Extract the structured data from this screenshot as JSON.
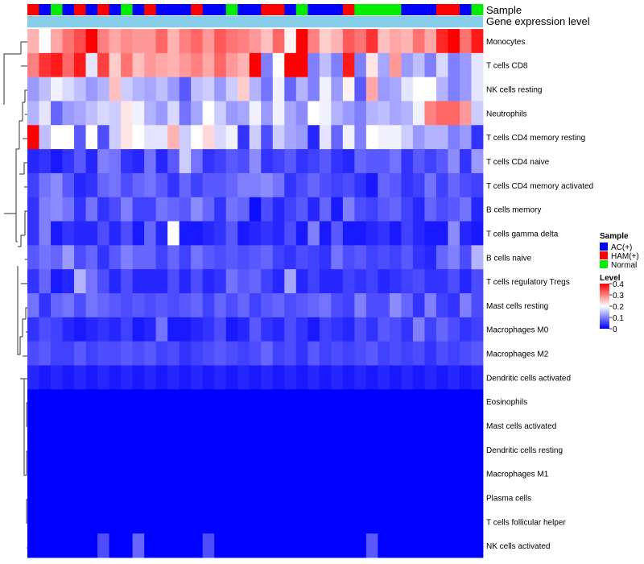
{
  "chart_data": {
    "type": "heatmap",
    "annotation_titles": {
      "sample": "Sample",
      "gene": "Gene expression level"
    },
    "sample_groups": [
      "HAM",
      "AC",
      "Normal",
      "AC",
      "HAM",
      "AC",
      "HAM",
      "AC",
      "Normal",
      "AC",
      "HAM",
      "AC",
      "AC",
      "AC",
      "HAM",
      "AC",
      "AC",
      "Normal",
      "AC",
      "AC",
      "HAM",
      "HAM",
      "AC",
      "Normal",
      "AC",
      "AC",
      "AC",
      "HAM",
      "Normal",
      "Normal",
      "Normal",
      "Normal",
      "AC",
      "AC",
      "AC",
      "HAM",
      "HAM",
      "AC",
      "Normal"
    ],
    "group_colors": {
      "AC": "#0000ff",
      "HAM": "#ff0000",
      "Normal": "#00ee00"
    },
    "gene_bar_color": "#87ceeb",
    "rows": [
      {
        "name": "Monocytes",
        "values": [
          0.26,
          0.2,
          0.27,
          0.31,
          0.34,
          0.4,
          0.3,
          0.27,
          0.29,
          0.28,
          0.28,
          0.32,
          0.26,
          0.3,
          0.32,
          0.28,
          0.33,
          0.31,
          0.3,
          0.28,
          0.25,
          0.32,
          0.21,
          0.4,
          0.3,
          0.24,
          0.26,
          0.33,
          0.31,
          0.36,
          0.25,
          0.27,
          0.26,
          0.31,
          0.27,
          0.37,
          0.4,
          0.31,
          0.38
        ]
      },
      {
        "name": "T cells CD8",
        "values": [
          0.3,
          0.36,
          0.38,
          0.32,
          0.38,
          0.18,
          0.35,
          0.24,
          0.31,
          0.25,
          0.28,
          0.27,
          0.26,
          0.28,
          0.3,
          0.27,
          0.32,
          0.28,
          0.26,
          0.4,
          0.1,
          0.2,
          0.4,
          0.4,
          0.1,
          0.15,
          0.1,
          0.38,
          0.1,
          0.22,
          0.13,
          0.28,
          0.12,
          0.15,
          0.1,
          0.17,
          0.1,
          0.12,
          0.18
        ]
      },
      {
        "name": "NK cells resting",
        "values": [
          0.12,
          0.15,
          0.19,
          0.17,
          0.15,
          0.12,
          0.14,
          0.25,
          0.16,
          0.14,
          0.13,
          0.15,
          0.12,
          0.07,
          0.15,
          0.16,
          0.12,
          0.16,
          0.24,
          0.14,
          0.09,
          0.19,
          0.08,
          0.14,
          0.1,
          0.19,
          0.12,
          0.21,
          0.07,
          0.27,
          0.12,
          0.13,
          0.18,
          0.2,
          0.2,
          0.14,
          0.1,
          0.12,
          0.18
        ]
      },
      {
        "name": "Neutrophils",
        "values": [
          0.14,
          0.18,
          0.08,
          0.12,
          0.13,
          0.15,
          0.17,
          0.16,
          0.22,
          0.19,
          0.14,
          0.12,
          0.17,
          0.09,
          0.13,
          0.2,
          0.16,
          0.12,
          0.13,
          0.19,
          0.12,
          0.19,
          0.13,
          0.11,
          0.2,
          0.19,
          0.14,
          0.12,
          0.1,
          0.14,
          0.15,
          0.13,
          0.14,
          0.19,
          0.3,
          0.32,
          0.32,
          0.28,
          0.16
        ]
      },
      {
        "name": "T cells CD4 memory resting",
        "values": [
          0.4,
          0.15,
          0.2,
          0.2,
          0.07,
          0.2,
          0.06,
          0.16,
          0.22,
          0.2,
          0.18,
          0.18,
          0.26,
          0.16,
          0.2,
          0.23,
          0.17,
          0.19,
          0.04,
          0.16,
          0.06,
          0.16,
          0.13,
          0.12,
          0.03,
          0.18,
          0.08,
          0.19,
          0.1,
          0.2,
          0.19,
          0.19,
          0.16,
          0.12,
          0.14,
          0.14,
          0.1,
          0.12,
          0.04
        ]
      },
      {
        "name": "T cells CD4 naive",
        "values": [
          0.03,
          0.04,
          0.02,
          0.04,
          0.07,
          0.03,
          0.1,
          0.09,
          0.04,
          0.03,
          0.09,
          0.03,
          0.07,
          0.16,
          0.09,
          0.04,
          0.05,
          0.07,
          0.06,
          0.11,
          0.04,
          0.05,
          0.07,
          0.04,
          0.05,
          0.07,
          0.04,
          0.03,
          0.08,
          0.07,
          0.07,
          0.09,
          0.04,
          0.07,
          0.05,
          0.07,
          0.11,
          0.04,
          0.12
        ]
      },
      {
        "name": "T cells CD4 memory activated",
        "values": [
          0.05,
          0.09,
          0.11,
          0.07,
          0.03,
          0.04,
          0.08,
          0.09,
          0.06,
          0.08,
          0.09,
          0.07,
          0.04,
          0.08,
          0.05,
          0.07,
          0.07,
          0.08,
          0.1,
          0.1,
          0.11,
          0.09,
          0.04,
          0.06,
          0.08,
          0.06,
          0.05,
          0.06,
          0.04,
          0.02,
          0.08,
          0.07,
          0.04,
          0.05,
          0.09,
          0.05,
          0.08,
          0.06,
          0.05
        ]
      },
      {
        "name": "B cells memory",
        "values": [
          0.04,
          0.1,
          0.11,
          0.09,
          0.04,
          0.09,
          0.04,
          0.06,
          0.1,
          0.05,
          0.05,
          0.09,
          0.08,
          0.07,
          0.11,
          0.08,
          0.04,
          0.09,
          0.08,
          0.01,
          0.06,
          0.03,
          0.05,
          0.07,
          0.03,
          0.08,
          0.02,
          0.1,
          0.06,
          0.05,
          0.07,
          0.08,
          0.05,
          0.03,
          0.08,
          0.06,
          0.07,
          0.09,
          0.03
        ]
      },
      {
        "name": "T cells gamma delta",
        "values": [
          0.04,
          0.1,
          0.02,
          0.04,
          0.03,
          0.03,
          0.06,
          0.03,
          0.06,
          0.02,
          0.08,
          0.03,
          0.2,
          0.02,
          0.02,
          0.03,
          0.04,
          0.07,
          0.02,
          0.03,
          0.04,
          0.03,
          0.06,
          0.02,
          0.1,
          0.02,
          0.07,
          0.02,
          0.02,
          0.03,
          0.04,
          0.02,
          0.05,
          0.03,
          0.02,
          0.02,
          0.11,
          0.03,
          0.02
        ]
      },
      {
        "name": "B cells naive",
        "values": [
          0.07,
          0.09,
          0.08,
          0.12,
          0.06,
          0.08,
          0.04,
          0.07,
          0.1,
          0.08,
          0.08,
          0.05,
          0.08,
          0.05,
          0.09,
          0.07,
          0.06,
          0.07,
          0.06,
          0.07,
          0.08,
          0.05,
          0.04,
          0.06,
          0.05,
          0.04,
          0.09,
          0.06,
          0.07,
          0.05,
          0.06,
          0.05,
          0.07,
          0.04,
          0.03,
          0.08,
          0.1,
          0.06,
          0.14
        ]
      },
      {
        "name": "T cells regulatory  Tregs",
        "values": [
          0.04,
          0.08,
          0.02,
          0.03,
          0.14,
          0.09,
          0.06,
          0.03,
          0.06,
          0.03,
          0.03,
          0.03,
          0.06,
          0.03,
          0.06,
          0.03,
          0.04,
          0.09,
          0.07,
          0.08,
          0.05,
          0.03,
          0.13,
          0.03,
          0.05,
          0.03,
          0.03,
          0.05,
          0.04,
          0.05,
          0.03,
          0.04,
          0.05,
          0.06,
          0.04,
          0.04,
          0.06,
          0.03,
          0.06
        ]
      },
      {
        "name": "Mast cells resting",
        "values": [
          0.09,
          0.04,
          0.08,
          0.09,
          0.06,
          0.09,
          0.08,
          0.07,
          0.06,
          0.07,
          0.06,
          0.07,
          0.06,
          0.07,
          0.08,
          0.05,
          0.08,
          0.06,
          0.08,
          0.05,
          0.07,
          0.08,
          0.06,
          0.07,
          0.08,
          0.09,
          0.06,
          0.05,
          0.1,
          0.06,
          0.06,
          0.11,
          0.08,
          0.04,
          0.1,
          0.05,
          0.04,
          0.1,
          0.06
        ]
      },
      {
        "name": "Macrophages M0",
        "values": [
          0.04,
          0.06,
          0.05,
          0.03,
          0.02,
          0.03,
          0.04,
          0.03,
          0.05,
          0.02,
          0.03,
          0.09,
          0.02,
          0.02,
          0.03,
          0.04,
          0.06,
          0.02,
          0.03,
          0.07,
          0.04,
          0.03,
          0.06,
          0.04,
          0.02,
          0.05,
          0.04,
          0.03,
          0.06,
          0.04,
          0.07,
          0.06,
          0.04,
          0.1,
          0.05,
          0.08,
          0.06,
          0.04,
          0.05
        ]
      },
      {
        "name": "Macrophages M2",
        "values": [
          0.06,
          0.07,
          0.05,
          0.05,
          0.07,
          0.05,
          0.06,
          0.06,
          0.07,
          0.06,
          0.07,
          0.05,
          0.06,
          0.04,
          0.05,
          0.06,
          0.07,
          0.06,
          0.05,
          0.06,
          0.08,
          0.05,
          0.06,
          0.04,
          0.07,
          0.05,
          0.06,
          0.05,
          0.06,
          0.07,
          0.05,
          0.06,
          0.05,
          0.06,
          0.04,
          0.06,
          0.05,
          0.06,
          0.07
        ]
      },
      {
        "name": "Dendritic cells activated",
        "values": [
          0.03,
          0.02,
          0.03,
          0.02,
          0.03,
          0.02,
          0.03,
          0.02,
          0.03,
          0.02,
          0.03,
          0.02,
          0.03,
          0.02,
          0.03,
          0.02,
          0.03,
          0.02,
          0.03,
          0.02,
          0.03,
          0.02,
          0.03,
          0.02,
          0.03,
          0.02,
          0.03,
          0.02,
          0.03,
          0.02,
          0.03,
          0.02,
          0.03,
          0.02,
          0.03,
          0.02,
          0.03,
          0.02,
          0.03
        ]
      },
      {
        "name": "Eosinophils",
        "values": [
          0,
          0,
          0,
          0,
          0,
          0,
          0,
          0,
          0,
          0,
          0,
          0,
          0,
          0,
          0,
          0,
          0,
          0,
          0,
          0,
          0,
          0,
          0,
          0,
          0,
          0,
          0,
          0,
          0,
          0,
          0,
          0,
          0,
          0,
          0,
          0,
          0,
          0,
          0
        ]
      },
      {
        "name": "Mast cells activated",
        "values": [
          0,
          0,
          0,
          0,
          0,
          0,
          0,
          0,
          0,
          0,
          0,
          0,
          0,
          0,
          0,
          0,
          0,
          0,
          0,
          0,
          0,
          0,
          0,
          0,
          0,
          0,
          0,
          0,
          0,
          0,
          0,
          0,
          0,
          0,
          0,
          0,
          0,
          0,
          0
        ]
      },
      {
        "name": "Dendritic cells resting",
        "values": [
          0,
          0,
          0,
          0,
          0,
          0,
          0,
          0,
          0,
          0,
          0,
          0,
          0,
          0,
          0,
          0,
          0,
          0,
          0,
          0,
          0,
          0,
          0,
          0,
          0,
          0,
          0,
          0,
          0,
          0,
          0,
          0,
          0,
          0,
          0,
          0,
          0,
          0,
          0
        ]
      },
      {
        "name": "Macrophages M1",
        "values": [
          0,
          0,
          0,
          0,
          0,
          0,
          0,
          0,
          0,
          0,
          0,
          0,
          0,
          0,
          0,
          0,
          0,
          0,
          0,
          0,
          0,
          0,
          0,
          0,
          0,
          0,
          0,
          0,
          0,
          0,
          0,
          0,
          0,
          0,
          0,
          0,
          0,
          0,
          0
        ]
      },
      {
        "name": "Plasma cells",
        "values": [
          0,
          0,
          0,
          0,
          0,
          0,
          0,
          0,
          0,
          0,
          0,
          0,
          0,
          0,
          0,
          0,
          0,
          0,
          0,
          0,
          0,
          0,
          0,
          0,
          0,
          0,
          0,
          0,
          0,
          0,
          0,
          0,
          0,
          0,
          0,
          0,
          0,
          0,
          0
        ]
      },
      {
        "name": "T cells follicular helper",
        "values": [
          0,
          0,
          0,
          0,
          0,
          0,
          0,
          0,
          0,
          0,
          0,
          0,
          0,
          0,
          0,
          0,
          0,
          0,
          0,
          0,
          0,
          0,
          0,
          0,
          0,
          0,
          0,
          0,
          0,
          0,
          0,
          0,
          0,
          0,
          0,
          0,
          0,
          0,
          0
        ]
      },
      {
        "name": "NK cells activated",
        "values": [
          0,
          0,
          0,
          0,
          0,
          0,
          0.06,
          0,
          0,
          0.08,
          0,
          0,
          0,
          0,
          0,
          0.06,
          0,
          0,
          0,
          0,
          0,
          0,
          0,
          0,
          0,
          0,
          0,
          0,
          0,
          0.07,
          0,
          0,
          0,
          0,
          0,
          0,
          0,
          0,
          0
        ]
      }
    ],
    "legend": {
      "sample_title": "Sample",
      "sample_entries": [
        {
          "label": "AC(+)",
          "group": "AC"
        },
        {
          "label": "HAM(+)",
          "group": "HAM"
        },
        {
          "label": "Normal",
          "group": "Normal"
        }
      ],
      "level_title": "Level",
      "level_ticks": [
        "0.4",
        "0.3",
        "0.2",
        "0.1",
        "0"
      ],
      "level_range": [
        0,
        0.4
      ],
      "colors": {
        "low": "#0000ff",
        "mid": "#ffffff",
        "high": "#ff0000"
      }
    }
  }
}
